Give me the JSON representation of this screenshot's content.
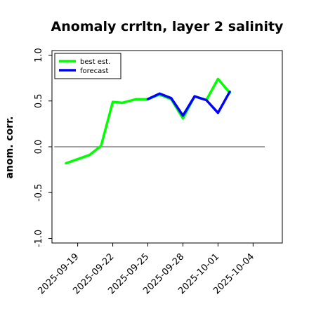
{
  "chart_data": {
    "type": "line",
    "title": "Anomaly crrltn, layer 2 salinity",
    "ylabel": "anom. corr.",
    "xlabel": "",
    "ylim": [
      -1.05,
      1.05
    ],
    "xlim": [
      -2.2,
      17.5
    ],
    "yticks": [
      {
        "value": -1.0,
        "label": "-1.0"
      },
      {
        "value": -0.5,
        "label": "-0.5"
      },
      {
        "value": 0.0,
        "label": "0.0"
      },
      {
        "value": 0.5,
        "label": "0.5"
      },
      {
        "value": 1.0,
        "label": "1.0"
      }
    ],
    "xticks": [
      {
        "day": 0,
        "label": "2025-09-19",
        "color": "#000000"
      },
      {
        "day": 3,
        "label": "2025-09-22",
        "color": "#000000"
      },
      {
        "day": 6,
        "label": "2025-09-25",
        "color": "#228B22"
      },
      {
        "day": 9,
        "label": "2025-09-28",
        "color": "#000000"
      },
      {
        "day": 12,
        "label": "2025-10-01",
        "color": "#000000"
      },
      {
        "day": 15,
        "label": "2025-10-04",
        "color": "#000000"
      }
    ],
    "reference_line": 0.0,
    "legend": {
      "position": "top-left",
      "entries": [
        "best est.",
        "forecast"
      ]
    },
    "series": [
      {
        "name": "best est.",
        "color": "#00ff00",
        "x": [
          -1.0,
          1.0,
          2.0,
          3.0,
          3.8,
          5.0,
          6.0,
          7.0,
          8.0,
          9.0,
          10.0,
          11.0,
          12.0,
          13.0
        ],
        "y": [
          -0.18,
          -0.09,
          0.01,
          0.49,
          0.48,
          0.52,
          0.52,
          0.57,
          0.52,
          0.31,
          0.55,
          0.51,
          0.74,
          0.59
        ]
      },
      {
        "name": "forecast",
        "color": "#0000ff",
        "x": [
          6.0,
          7.0,
          8.0,
          9.0,
          10.0,
          11.0,
          12.0,
          13.0
        ],
        "y": [
          0.52,
          0.58,
          0.53,
          0.34,
          0.55,
          0.51,
          0.37,
          0.6
        ]
      }
    ]
  }
}
